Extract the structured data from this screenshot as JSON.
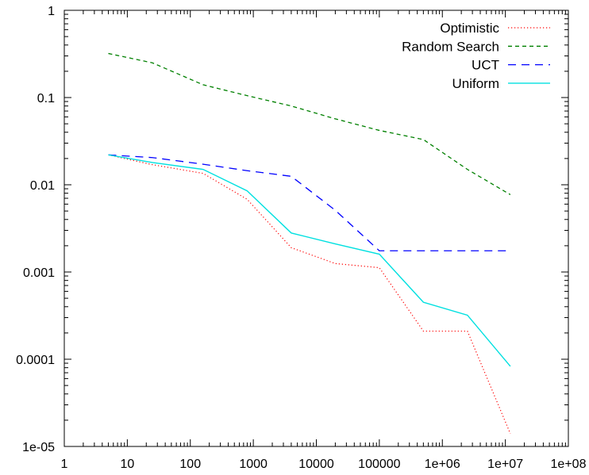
{
  "chart_data": {
    "type": "line",
    "x_scale": "log",
    "y_scale": "log",
    "xlim": [
      1,
      100000000
    ],
    "ylim": [
      1e-05,
      1
    ],
    "x_tick_values": [
      1,
      10,
      100,
      1000,
      10000,
      100000,
      1000000,
      10000000,
      100000000
    ],
    "x_tick_labels": [
      "1",
      "10",
      "100",
      "1000",
      "10000",
      "100000",
      "1e+06",
      "1e+07",
      "1e+08"
    ],
    "y_tick_values": [
      1,
      0.1,
      0.01,
      0.001,
      0.0001,
      1e-05
    ],
    "y_tick_labels": [
      "1",
      "0.1",
      "0.01",
      "0.001",
      "0.0001",
      "1e-05"
    ],
    "legend_position": "top-right",
    "grid": false,
    "series": [
      {
        "name": "Optimistic",
        "color": "#ff0000",
        "dash": "dotted",
        "x": [
          5,
          25,
          160,
          800,
          4000,
          20000,
          100000,
          500000,
          2500000,
          12000000
        ],
        "y": [
          0.022,
          0.017,
          0.0135,
          0.0068,
          0.0019,
          0.00125,
          0.00112,
          0.00021,
          0.00021,
          1.4e-05
        ]
      },
      {
        "name": "Random Search",
        "color": "#008000",
        "dash": "dashed",
        "x": [
          5,
          25,
          160,
          800,
          4000,
          20000,
          100000,
          500000,
          2500000,
          12000000
        ],
        "y": [
          0.32,
          0.25,
          0.14,
          0.105,
          0.08,
          0.057,
          0.042,
          0.033,
          0.015,
          0.0077
        ]
      },
      {
        "name": "UCT",
        "color": "#0000ff",
        "dash": "longdash",
        "x": [
          5,
          25,
          160,
          800,
          4000,
          20000,
          100000,
          500000,
          2500000,
          12000000
        ],
        "y": [
          0.022,
          0.0205,
          0.0172,
          0.0145,
          0.0125,
          0.0051,
          0.00175,
          0.00175,
          0.00175,
          0.00175
        ]
      },
      {
        "name": "Uniform",
        "color": "#00e0e0",
        "dash": "solid",
        "x": [
          5,
          25,
          160,
          800,
          4000,
          20000,
          100000,
          500000,
          2500000,
          12000000
        ],
        "y": [
          0.022,
          0.018,
          0.015,
          0.0085,
          0.0028,
          0.0021,
          0.0016,
          0.00045,
          0.00032,
          8.3e-05
        ]
      }
    ]
  }
}
